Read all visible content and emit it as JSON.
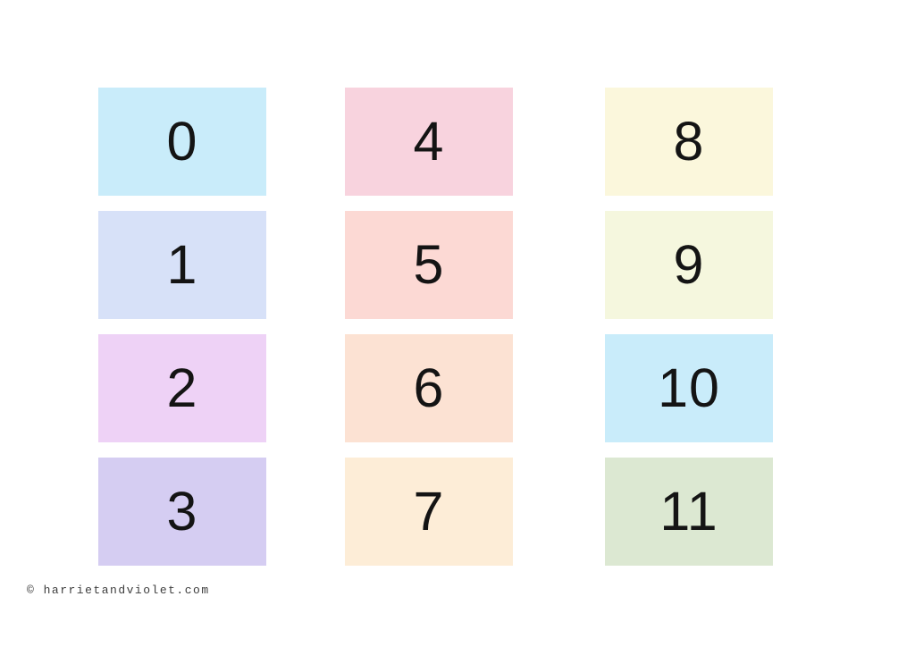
{
  "page": {
    "background": "#ffffff"
  },
  "cards": [
    {
      "number": "0",
      "color": "#c9ecfa"
    },
    {
      "number": "1",
      "color": "#d7e1f8"
    },
    {
      "number": "2",
      "color": "#eed2f6"
    },
    {
      "number": "3",
      "color": "#d5cdf2"
    },
    {
      "number": "4",
      "color": "#f8d3de"
    },
    {
      "number": "5",
      "color": "#fcd9d4"
    },
    {
      "number": "6",
      "color": "#fce2d3"
    },
    {
      "number": "7",
      "color": "#fdedd7"
    },
    {
      "number": "8",
      "color": "#fbf7dc"
    },
    {
      "number": "9",
      "color": "#f5f7de"
    },
    {
      "number": "10",
      "color": "#c9ecfa"
    },
    {
      "number": "11",
      "color": "#dce8d2"
    }
  ],
  "footer": {
    "copyright": "© harrietandviolet.com"
  }
}
